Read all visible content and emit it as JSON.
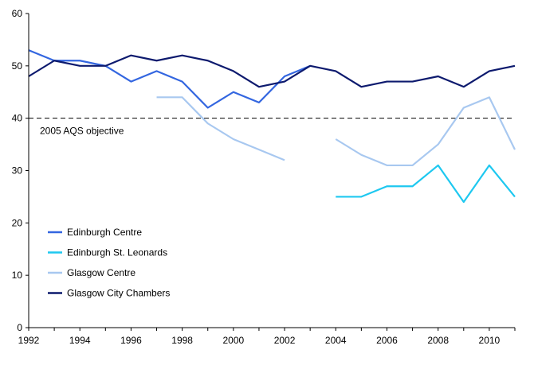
{
  "chart_data": {
    "type": "line",
    "title": "",
    "xlabel": "",
    "ylabel": "",
    "xlim": [
      1992,
      2011
    ],
    "ylim": [
      0,
      60
    ],
    "x": [
      1992,
      1993,
      1994,
      1995,
      1996,
      1997,
      1998,
      1999,
      2000,
      2001,
      2002,
      2003,
      2004,
      2005,
      2006,
      2007,
      2008,
      2009,
      2010,
      2011
    ],
    "x_tick_labels": [
      "1992",
      "1994",
      "1996",
      "1998",
      "2000",
      "2002",
      "2004",
      "2006",
      "2008",
      "2010"
    ],
    "y_tick_labels": [
      "0",
      "10",
      "20",
      "30",
      "40",
      "50",
      "60"
    ],
    "series": [
      {
        "name": "Edinburgh Centre",
        "color": "#3366e0",
        "values": [
          53,
          51,
          51,
          50,
          47,
          49,
          47,
          42,
          45,
          43,
          48,
          50,
          null,
          null,
          null,
          null,
          null,
          null,
          null,
          null
        ]
      },
      {
        "name": "Edinburgh St. Leonards",
        "color": "#1ec8f0",
        "values": [
          null,
          null,
          null,
          null,
          null,
          null,
          null,
          null,
          null,
          null,
          null,
          null,
          25,
          25,
          27,
          27,
          31,
          24,
          31,
          25
        ]
      },
      {
        "name": "Glasgow Centre",
        "color": "#a8c8f0",
        "values": [
          null,
          null,
          null,
          null,
          null,
          44,
          44,
          39,
          36,
          34,
          32,
          null,
          36,
          33,
          31,
          31,
          35,
          42,
          44,
          34
        ]
      },
      {
        "name": "Glasgow City Chambers",
        "color": "#0d1a6e",
        "values": [
          48,
          51,
          50,
          50,
          52,
          51,
          52,
          51,
          49,
          46,
          47,
          50,
          49,
          46,
          47,
          47,
          48,
          46,
          49,
          50
        ]
      }
    ],
    "reference_line": {
      "value": 40,
      "label": "2005 AQS objective",
      "style": "dashed"
    },
    "legend": {
      "position": "lower-left"
    }
  }
}
